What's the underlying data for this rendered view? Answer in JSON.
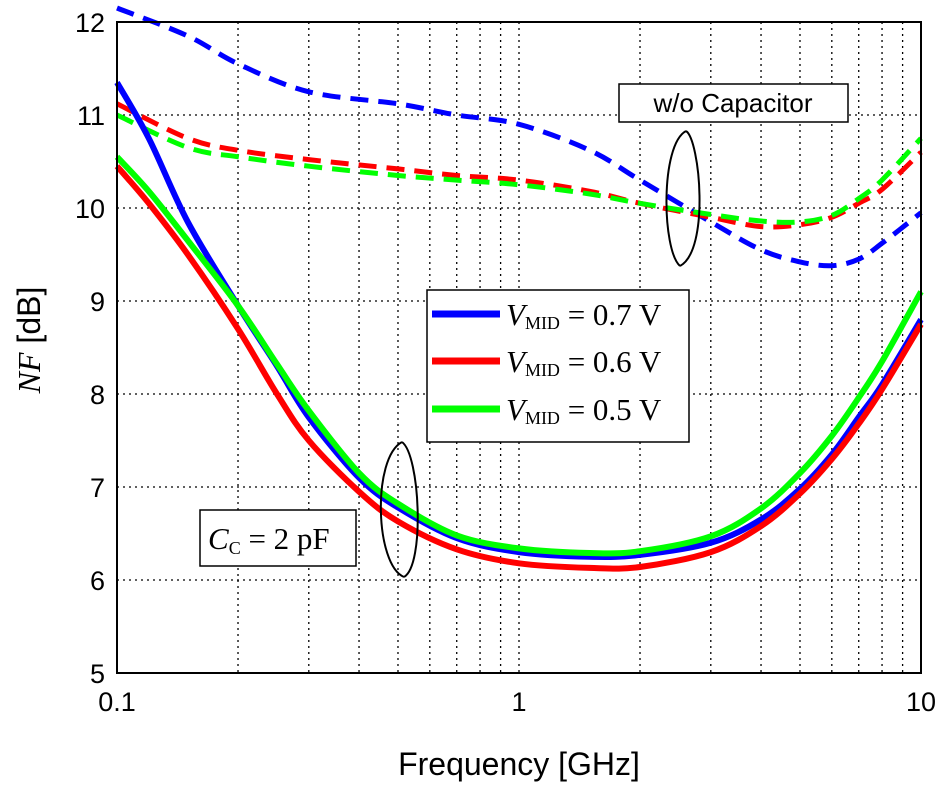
{
  "chart_data": {
    "type": "line",
    "xlabel": "Frequency [GHz]",
    "ylabel": {
      "main": "NF",
      "unit": " [dB]"
    },
    "x_scale": "log",
    "xlim": [
      0.1,
      10
    ],
    "ylim": [
      5,
      12
    ],
    "x_ticks": [
      "0.1",
      "1",
      "10"
    ],
    "y_ticks": [
      "5",
      "6",
      "7",
      "8",
      "9",
      "10",
      "11",
      "12"
    ],
    "grid": true,
    "legend_position": "center-right",
    "legend": [
      {
        "symbol": "V",
        "sub": "MID",
        "rest": " = 0.7 V",
        "color": "#0000ff"
      },
      {
        "symbol": "V",
        "sub": "MID",
        "rest": " = 0.6 V",
        "color": "#ff0000"
      },
      {
        "symbol": "V",
        "sub": "MID",
        "rest": " = 0.5 V",
        "color": "#00ff00"
      }
    ],
    "annotations": {
      "without_capacitor": "w/o Capacitor",
      "with_capacitor": {
        "symbol": "C",
        "sub": "C",
        "rest": " = 2 pF"
      }
    },
    "series": [
      {
        "group": "C_C = 2 pF",
        "color": "#0000ff",
        "style": "solid",
        "x": [
          0.1,
          0.12,
          0.15,
          0.2,
          0.25,
          0.3,
          0.4,
          0.5,
          0.7,
          1,
          1.5,
          2,
          3,
          4,
          5,
          6,
          7,
          8,
          10
        ],
        "y": [
          11.35,
          10.75,
          9.85,
          8.95,
          8.3,
          7.75,
          7.1,
          6.78,
          6.45,
          6.3,
          6.25,
          6.27,
          6.4,
          6.65,
          6.98,
          7.35,
          7.75,
          8.1,
          8.8
        ]
      },
      {
        "group": "C_C = 2 pF",
        "color": "#ff0000",
        "style": "solid",
        "x": [
          0.1,
          0.12,
          0.15,
          0.2,
          0.25,
          0.3,
          0.4,
          0.5,
          0.7,
          1,
          1.5,
          2,
          3,
          4,
          5,
          6,
          7,
          8,
          10
        ],
        "y": [
          10.45,
          10.05,
          9.5,
          8.7,
          8.0,
          7.5,
          6.95,
          6.63,
          6.33,
          6.18,
          6.13,
          6.14,
          6.3,
          6.58,
          6.93,
          7.3,
          7.68,
          8.05,
          8.75
        ]
      },
      {
        "group": "C_C = 2 pF",
        "color": "#00ff00",
        "style": "solid",
        "x": [
          0.1,
          0.12,
          0.15,
          0.2,
          0.25,
          0.3,
          0.4,
          0.5,
          0.7,
          1,
          1.5,
          2,
          3,
          4,
          5,
          6,
          7,
          8,
          10
        ],
        "y": [
          10.55,
          10.18,
          9.65,
          8.95,
          8.32,
          7.82,
          7.15,
          6.82,
          6.48,
          6.34,
          6.29,
          6.31,
          6.47,
          6.77,
          7.15,
          7.55,
          7.96,
          8.35,
          9.1
        ]
      },
      {
        "group": "w/o Capacitor",
        "color": "#0000ff",
        "style": "dashed",
        "x": [
          0.1,
          0.15,
          0.2,
          0.3,
          0.5,
          0.7,
          1,
          1.5,
          2,
          3,
          4,
          5,
          6,
          7,
          8,
          10
        ],
        "y": [
          12.15,
          11.85,
          11.55,
          11.25,
          11.12,
          11.0,
          10.9,
          10.62,
          10.3,
          9.85,
          9.55,
          9.42,
          9.38,
          9.45,
          9.62,
          9.95
        ]
      },
      {
        "group": "w/o Capacitor",
        "color": "#ff0000",
        "style": "dashed",
        "x": [
          0.1,
          0.15,
          0.2,
          0.3,
          0.5,
          0.7,
          1,
          1.5,
          2,
          3,
          4,
          5,
          6,
          7,
          8,
          10
        ],
        "y": [
          11.12,
          10.75,
          10.62,
          10.52,
          10.42,
          10.35,
          10.3,
          10.18,
          10.05,
          9.9,
          9.8,
          9.82,
          9.9,
          10.05,
          10.2,
          10.6
        ]
      },
      {
        "group": "w/o Capacitor",
        "color": "#00ff00",
        "style": "dashed",
        "x": [
          0.1,
          0.15,
          0.2,
          0.3,
          0.5,
          0.7,
          1,
          1.5,
          2,
          3,
          4,
          5,
          6,
          7,
          8,
          10
        ],
        "y": [
          11.0,
          10.65,
          10.55,
          10.45,
          10.35,
          10.3,
          10.25,
          10.15,
          10.05,
          9.93,
          9.86,
          9.85,
          9.92,
          10.1,
          10.3,
          10.75
        ]
      }
    ]
  }
}
